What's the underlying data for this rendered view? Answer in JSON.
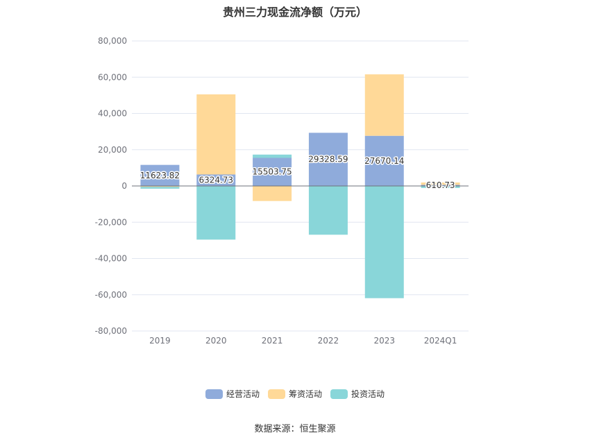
{
  "chart_data": {
    "type": "bar",
    "stacked": true,
    "title": "贵州三力现金流净额（万元）",
    "categories": [
      "2019",
      "2020",
      "2021",
      "2022",
      "2023",
      "2024Q1"
    ],
    "ylim": [
      -80000,
      80000
    ],
    "yticks": [
      80000,
      60000,
      40000,
      20000,
      0,
      -20000,
      -40000,
      -60000,
      -80000
    ],
    "grid": true,
    "legend_position": "bottom",
    "series": [
      {
        "name": "经营活动",
        "color": "#8fabdb",
        "show_labels": true,
        "values": [
          11623.82,
          6324.73,
          15503.75,
          29328.59,
          27670.14,
          610.73
        ]
      },
      {
        "name": "筹资活动",
        "color": "#ffd998",
        "show_labels": false,
        "values": [
          -500,
          44200,
          -8300,
          0,
          33900,
          1300
        ]
      },
      {
        "name": "投资活动",
        "color": "#89d6d9",
        "show_labels": false,
        "values": [
          -1000,
          -29600,
          1800,
          -26900,
          -61900,
          -1100
        ]
      }
    ]
  },
  "source": "数据来源：恒生聚源"
}
